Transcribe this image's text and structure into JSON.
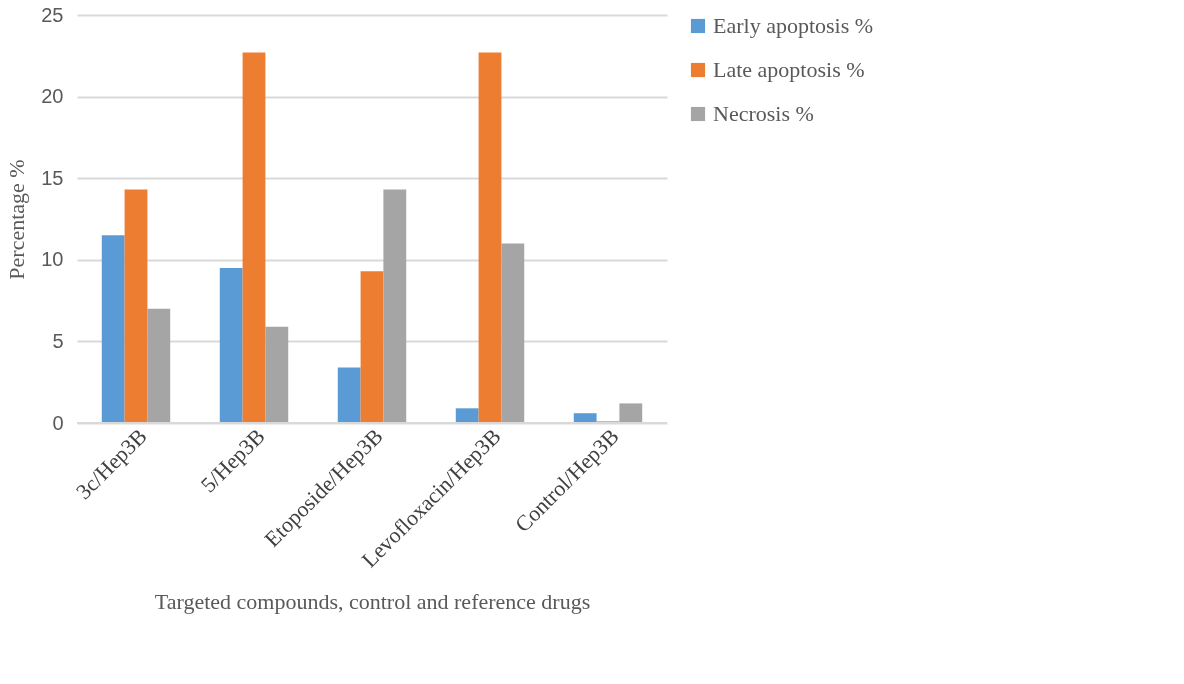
{
  "chart_data": {
    "type": "bar",
    "xlabel": "Targeted compounds, control and reference drugs",
    "ylabel": "Percentage %",
    "categories": [
      "3c/Hep3B",
      "5/Hep3B",
      "Etoposide/Hep3B",
      "Levofloxacin/Hep3B",
      "Control/Hep3B"
    ],
    "series": [
      {
        "name": "Early apoptosis %",
        "color": "#5b9bd5",
        "values": [
          11.5,
          9.5,
          3.4,
          0.9,
          0.6
        ]
      },
      {
        "name": "Late apoptosis %",
        "color": "#ed7d31",
        "values": [
          14.3,
          22.7,
          9.3,
          22.7,
          0.1
        ]
      },
      {
        "name": "Necrosis %",
        "color": "#a5a5a5",
        "values": [
          7.0,
          5.9,
          14.3,
          11.0,
          1.2
        ]
      }
    ],
    "ylim": [
      0,
      25
    ],
    "yticks": [
      0,
      5,
      10,
      15,
      20,
      25
    ],
    "grid": "y",
    "legend": "right"
  }
}
